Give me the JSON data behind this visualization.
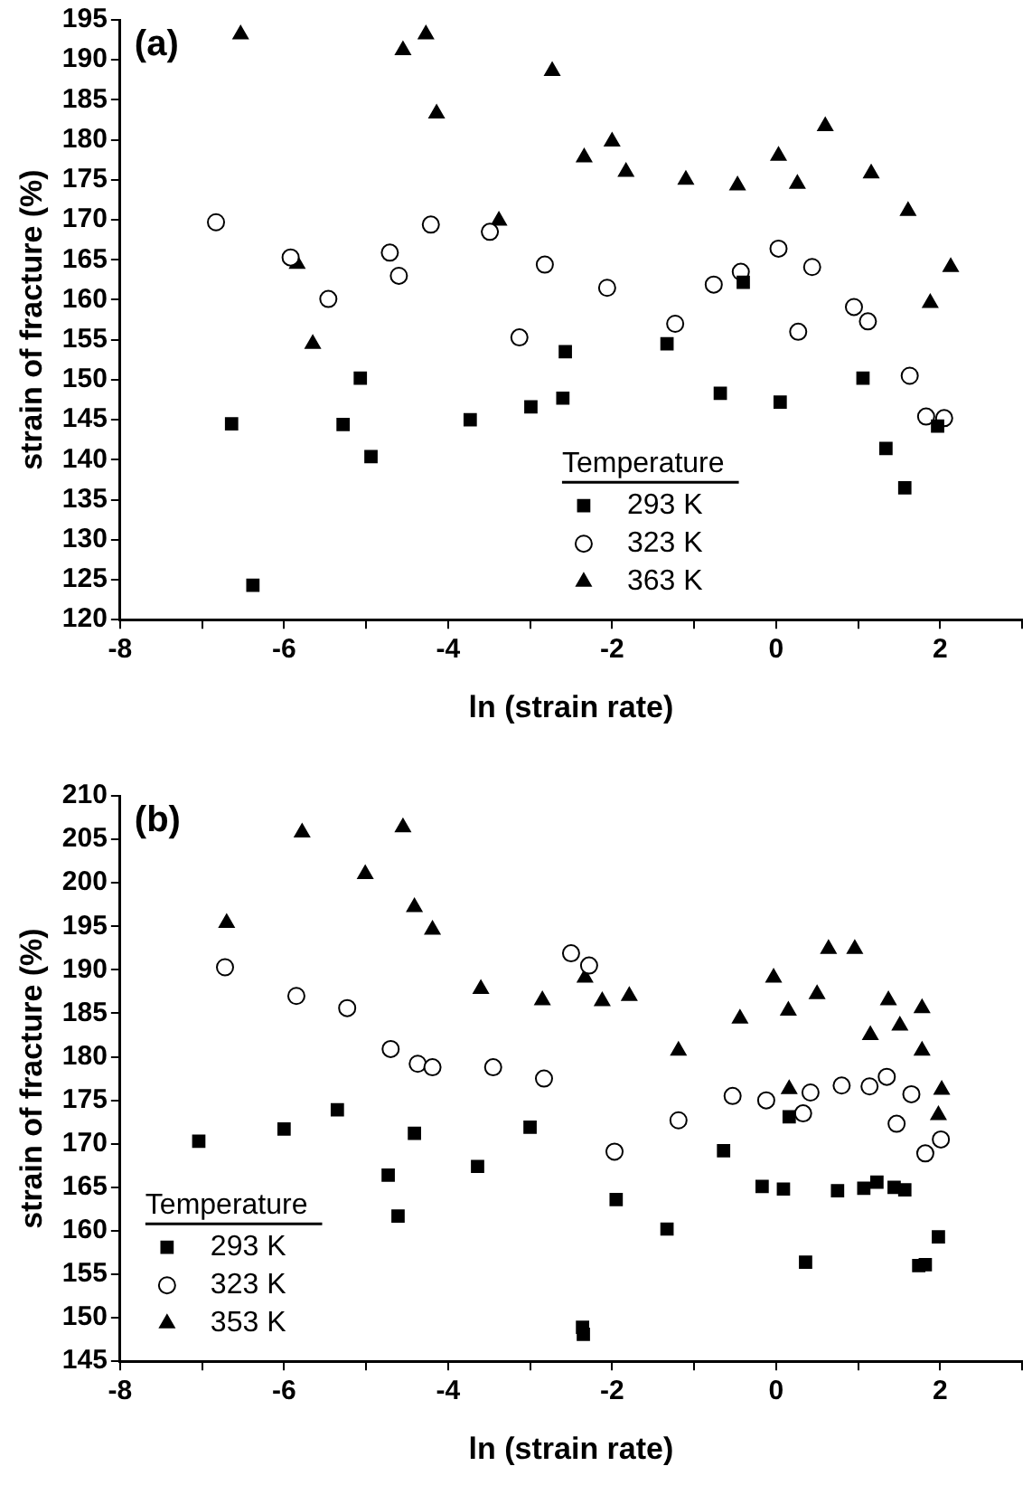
{
  "chart_data": [
    {
      "type": "scatter",
      "title": "(a)",
      "xlabel": "ln (strain rate)",
      "ylabel": "strain of fracture (%)",
      "legend_title": "Temperature",
      "legend": "bottom",
      "grid": false,
      "xlim": [
        -8,
        3
      ],
      "xticks": [
        -8,
        {
          "value": -7,
          "label": null
        },
        -6,
        {
          "value": -5,
          "label": null
        },
        -4,
        {
          "value": -3,
          "label": null
        },
        -2,
        {
          "value": -1,
          "label": null
        },
        0,
        {
          "value": 1,
          "label": null
        },
        2,
        {
          "value": 3,
          "label": null
        }
      ],
      "ylim": [
        120,
        195
      ],
      "yticks": [
        120,
        125,
        130,
        135,
        140,
        145,
        150,
        155,
        160,
        165,
        170,
        175,
        180,
        185,
        190,
        195
      ],
      "series": [
        {
          "name": "293 K",
          "color": "#000000",
          "marker": "square",
          "x": [
            -6.64,
            -6.38,
            -5.28,
            -5.07,
            -4.94,
            -3.73,
            -2.99,
            -2.6,
            -2.57,
            -1.33,
            -0.68,
            -0.4,
            0.05,
            1.06,
            1.34,
            1.57,
            1.97
          ],
          "values": [
            144.5,
            124.3,
            144.4,
            150.2,
            140.4,
            145.0,
            146.6,
            147.7,
            153.5,
            154.5,
            148.3,
            162.2,
            147.2,
            150.2,
            141.4,
            136.5,
            144.2
          ]
        },
        {
          "name": "323 K",
          "color": "#000000",
          "marker": "circle",
          "x": [
            -6.83,
            -5.92,
            -5.46,
            -4.71,
            -4.6,
            -4.21,
            -3.49,
            -3.13,
            -2.82,
            -2.06,
            -1.23,
            -0.76,
            -0.43,
            0.03,
            0.27,
            0.44,
            0.95,
            1.12,
            1.63,
            1.83,
            2.05
          ],
          "values": [
            169.7,
            165.3,
            160.1,
            165.9,
            163.0,
            169.4,
            168.5,
            155.3,
            164.4,
            161.5,
            157.0,
            161.9,
            163.5,
            166.4,
            156.0,
            164.1,
            159.1,
            157.3,
            150.5,
            145.4,
            145.2
          ]
        },
        {
          "name": "363 K",
          "color": "#000000",
          "marker": "triangle",
          "x": [
            -6.53,
            -5.84,
            -5.65,
            -4.55,
            -4.27,
            -4.14,
            -3.38,
            -2.73,
            -2.34,
            -2.0,
            -1.83,
            -1.1,
            -0.47,
            0.03,
            0.26,
            0.6,
            1.16,
            1.61,
            1.88,
            2.13
          ],
          "values": [
            193.2,
            164.5,
            154.5,
            191.2,
            193.2,
            183.3,
            169.9,
            188.6,
            177.8,
            179.8,
            176.0,
            175.0,
            174.3,
            178.0,
            174.5,
            181.7,
            175.8,
            171.1,
            159.6,
            164.1
          ]
        }
      ]
    },
    {
      "type": "scatter",
      "title": "(b)",
      "xlabel": "ln (strain rate)",
      "ylabel": "strain of fracture (%)",
      "legend_title": "Temperature",
      "legend": "bottom left",
      "grid": false,
      "xlim": [
        -8,
        3
      ],
      "xticks": [
        -8,
        {
          "value": -7,
          "label": null
        },
        -6,
        {
          "value": -5,
          "label": null
        },
        -4,
        {
          "value": -3,
          "label": null
        },
        -2,
        {
          "value": -1,
          "label": null
        },
        0,
        {
          "value": 1,
          "label": null
        },
        2,
        {
          "value": 3,
          "label": null
        }
      ],
      "ylim": [
        145,
        210
      ],
      "yticks": [
        145,
        150,
        155,
        160,
        165,
        170,
        175,
        180,
        185,
        190,
        195,
        200,
        205,
        210
      ],
      "series": [
        {
          "name": "293 K",
          "color": "#000000",
          "marker": "square",
          "x": [
            -7.04,
            -6.0,
            -5.35,
            -4.73,
            -4.61,
            -4.41,
            -3.64,
            -3.0,
            -2.36,
            -2.35,
            -1.95,
            -1.33,
            -0.64,
            -0.17,
            0.09,
            0.16,
            0.36,
            0.75,
            1.07,
            1.23,
            1.44,
            1.57,
            1.74,
            1.82,
            1.98
          ],
          "values": [
            170.3,
            171.7,
            173.9,
            166.4,
            161.7,
            171.2,
            167.4,
            171.9,
            148.9,
            148.1,
            163.6,
            160.2,
            169.2,
            165.1,
            164.8,
            173.1,
            156.4,
            164.6,
            164.9,
            165.6,
            165.0,
            164.7,
            156.0,
            156.1,
            159.3
          ]
        },
        {
          "name": "323 K",
          "color": "#000000",
          "marker": "circle",
          "x": [
            -6.72,
            -5.85,
            -5.23,
            -4.7,
            -4.37,
            -4.19,
            -3.45,
            -2.83,
            -2.5,
            -2.28,
            -1.97,
            -1.19,
            -0.53,
            -0.12,
            0.33,
            0.42,
            0.8,
            1.14,
            1.35,
            1.47,
            1.65,
            1.82,
            2.01
          ],
          "values": [
            190.3,
            187.0,
            185.6,
            180.9,
            179.2,
            178.8,
            178.8,
            177.5,
            191.9,
            190.5,
            169.1,
            172.7,
            175.5,
            175.0,
            173.5,
            175.9,
            176.7,
            176.6,
            177.7,
            172.3,
            175.7,
            168.9,
            170.5
          ]
        },
        {
          "name": "353 K",
          "color": "#000000",
          "marker": "triangle",
          "x": [
            -6.7,
            -5.78,
            -5.01,
            -4.55,
            -4.41,
            -4.19,
            -3.6,
            -2.85,
            -2.33,
            -2.12,
            -1.79,
            -1.19,
            -0.44,
            -0.03,
            0.15,
            0.16,
            0.5,
            0.64,
            0.96,
            1.15,
            1.37,
            1.51,
            1.78,
            1.78,
            1.98,
            2.02
          ],
          "values": [
            195.4,
            205.8,
            201.0,
            206.4,
            197.2,
            194.6,
            187.8,
            186.5,
            189.1,
            186.4,
            187.0,
            180.7,
            184.4,
            189.1,
            185.3,
            176.3,
            187.2,
            192.4,
            192.4,
            182.5,
            186.5,
            183.6,
            185.6,
            180.7,
            173.3,
            176.2
          ]
        }
      ]
    }
  ]
}
